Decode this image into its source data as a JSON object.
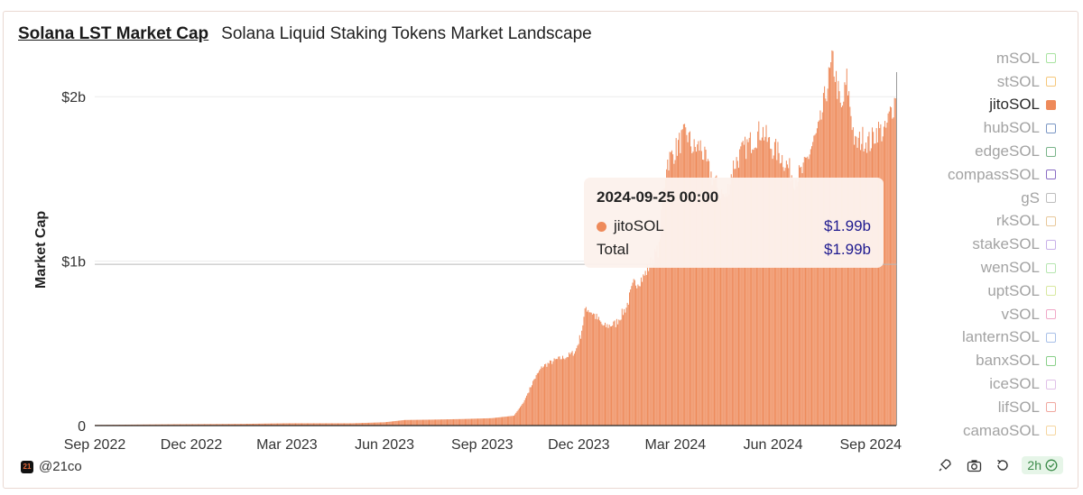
{
  "header": {
    "title": "Solana LST Market Cap",
    "subtitle": "Solana Liquid Staking Tokens Market Landscape"
  },
  "chart_data": {
    "type": "bar",
    "title": "Solana LST Market Cap",
    "subtitle": "Solana Liquid Staking Tokens Market Landscape",
    "xlabel": "",
    "ylabel": "Market Cap",
    "ylim": [
      0,
      2.27
    ],
    "y_unit": "billion USD",
    "yticks": [
      {
        "value": 0,
        "label": "0"
      },
      {
        "value": 1,
        "label": "$1b"
      },
      {
        "value": 2,
        "label": "$2b"
      }
    ],
    "xticks": [
      "Sep 2022",
      "Dec 2022",
      "Mar 2023",
      "Jun 2023",
      "Sep 2023",
      "Dec 2023",
      "Mar 2024",
      "Jun 2024",
      "Sep 2024"
    ],
    "x_range": [
      "2022-09-01",
      "2024-09-25"
    ],
    "series": [
      {
        "name": "jitoSOL",
        "color": "#ee8a5a",
        "points": [
          [
            "2022-09-01",
            0.004
          ],
          [
            "2022-11-15",
            0.008
          ],
          [
            "2023-01-15",
            0.01
          ],
          [
            "2023-03-01",
            0.014
          ],
          [
            "2023-05-01",
            0.014
          ],
          [
            "2023-06-01",
            0.02
          ],
          [
            "2023-06-20",
            0.034
          ],
          [
            "2023-07-15",
            0.036
          ],
          [
            "2023-08-15",
            0.04
          ],
          [
            "2023-09-10",
            0.045
          ],
          [
            "2023-10-01",
            0.06
          ],
          [
            "2023-10-10",
            0.14
          ],
          [
            "2023-10-20",
            0.28
          ],
          [
            "2023-10-28",
            0.36
          ],
          [
            "2023-11-10",
            0.4
          ],
          [
            "2023-11-20",
            0.42
          ],
          [
            "2023-11-28",
            0.45
          ],
          [
            "2023-12-03",
            0.55
          ],
          [
            "2023-12-08",
            0.72
          ],
          [
            "2023-12-15",
            0.68
          ],
          [
            "2023-12-25",
            0.6
          ],
          [
            "2024-01-05",
            0.62
          ],
          [
            "2024-01-15",
            0.72
          ],
          [
            "2024-01-22",
            0.86
          ],
          [
            "2024-01-31",
            0.9
          ],
          [
            "2024-02-08",
            1.0
          ],
          [
            "2024-02-15",
            1.08
          ],
          [
            "2024-02-18",
            1.35
          ],
          [
            "2024-02-22",
            1.6
          ],
          [
            "2024-02-28",
            1.65
          ],
          [
            "2024-03-05",
            1.72
          ],
          [
            "2024-03-12",
            1.78
          ],
          [
            "2024-03-18",
            1.68
          ],
          [
            "2024-03-25",
            1.7
          ],
          [
            "2024-04-02",
            1.55
          ],
          [
            "2024-04-10",
            1.45
          ],
          [
            "2024-04-18",
            1.38
          ],
          [
            "2024-04-25",
            1.58
          ],
          [
            "2024-05-05",
            1.68
          ],
          [
            "2024-05-15",
            1.75
          ],
          [
            "2024-05-22",
            1.8
          ],
          [
            "2024-05-30",
            1.7
          ],
          [
            "2024-06-08",
            1.65
          ],
          [
            "2024-06-15",
            1.58
          ],
          [
            "2024-06-22",
            1.5
          ],
          [
            "2024-06-30",
            1.55
          ],
          [
            "2024-07-08",
            1.7
          ],
          [
            "2024-07-15",
            1.8
          ],
          [
            "2024-07-22",
            2.05
          ],
          [
            "2024-07-28",
            2.22
          ],
          [
            "2024-08-05",
            1.9
          ],
          [
            "2024-08-10",
            2.1
          ],
          [
            "2024-08-18",
            1.7
          ],
          [
            "2024-08-25",
            1.75
          ],
          [
            "2024-09-01",
            1.72
          ],
          [
            "2024-09-08",
            1.8
          ],
          [
            "2024-09-15",
            1.78
          ],
          [
            "2024-09-20",
            1.9
          ],
          [
            "2024-09-25",
            1.99
          ]
        ]
      }
    ],
    "hover": {
      "date": "2024-09-25",
      "value": 1.99
    }
  },
  "tooltip": {
    "date": "2024-09-25 00:00",
    "series_label": "jitoSOL",
    "series_value": "$1.99b",
    "total_label": "Total",
    "total_value": "$1.99b",
    "dot_color": "#ee8a5a"
  },
  "legend": {
    "items": [
      {
        "label": "mSOL",
        "color": "#a8e3a0",
        "filled": false,
        "active": false
      },
      {
        "label": "stSOL",
        "color": "#f5c77a",
        "filled": false,
        "active": false
      },
      {
        "label": "jitoSOL",
        "color": "#ee8a5a",
        "filled": true,
        "active": true
      },
      {
        "label": "hubSOL",
        "color": "#7a96c4",
        "filled": false,
        "active": false
      },
      {
        "label": "edgeSOL",
        "color": "#7ab48a",
        "filled": false,
        "active": false
      },
      {
        "label": "compassSOL",
        "color": "#8a6cc4",
        "filled": false,
        "active": false
      },
      {
        "label": "gS",
        "color": "#bdbdbd",
        "filled": false,
        "active": false
      },
      {
        "label": "rkSOL",
        "color": "#e8c89a",
        "filled": false,
        "active": false
      },
      {
        "label": "stakeSOL",
        "color": "#c8b0e8",
        "filled": false,
        "active": false
      },
      {
        "label": "wenSOL",
        "color": "#b6e6b0",
        "filled": false,
        "active": false
      },
      {
        "label": "uptSOL",
        "color": "#d8e8a0",
        "filled": false,
        "active": false
      },
      {
        "label": "vSOL",
        "color": "#f0a8c8",
        "filled": false,
        "active": false
      },
      {
        "label": "lanternSOL",
        "color": "#a8c0e8",
        "filled": false,
        "active": false
      },
      {
        "label": "banxSOL",
        "color": "#8ad08a",
        "filled": false,
        "active": false
      },
      {
        "label": "iceSOL",
        "color": "#e0c0e8",
        "filled": false,
        "active": false
      },
      {
        "label": "lifSOL",
        "color": "#f0a8a0",
        "filled": false,
        "active": false
      },
      {
        "label": "camaoSOL",
        "color": "#f5d6a0",
        "filled": false,
        "active": false
      }
    ]
  },
  "footer": {
    "logo_text": "21",
    "handle": "@21co",
    "refresh_badge": "2h"
  }
}
